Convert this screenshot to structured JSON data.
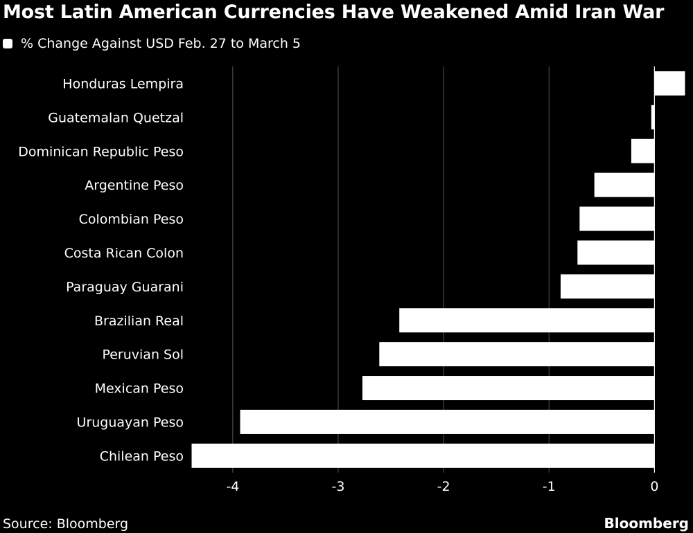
{
  "title": "Most Latin American Currencies Have Weakened Amid Iran War",
  "legend": {
    "label": "% Change Against USD Feb. 27 to March 5"
  },
  "source": "Source: Bloomberg",
  "brand": "Bloomberg",
  "colors": {
    "background": "#000000",
    "bar": "#ffffff",
    "grid": "#555555",
    "text": "#ffffff"
  },
  "chart_data": {
    "type": "bar",
    "orientation": "horizontal",
    "title": "Most Latin American Currencies Have Weakened Amid Iran War",
    "categories": [
      "Honduras Lempira",
      "Guatemalan Quetzal",
      "Dominican Republic Peso",
      "Argentine Peso",
      "Colombian Peso",
      "Costa Rican Colon",
      "Paraguay Guarani",
      "Brazilian Real",
      "Peruvian Sol",
      "Mexican Peso",
      "Uruguayan Peso",
      "Chilean Peso"
    ],
    "series": [
      {
        "name": "% Change Against USD Feb. 27 to March 5",
        "values": [
          0.29,
          -0.03,
          -0.22,
          -0.57,
          -0.71,
          -0.73,
          -0.89,
          -2.42,
          -2.61,
          -2.77,
          -3.93,
          -4.39
        ]
      }
    ],
    "xlim": [
      -4.4,
      0.3
    ],
    "xticks": [
      -4,
      -3,
      -2,
      -1,
      0
    ],
    "grid": "vertical",
    "legend_position": "top-left"
  }
}
